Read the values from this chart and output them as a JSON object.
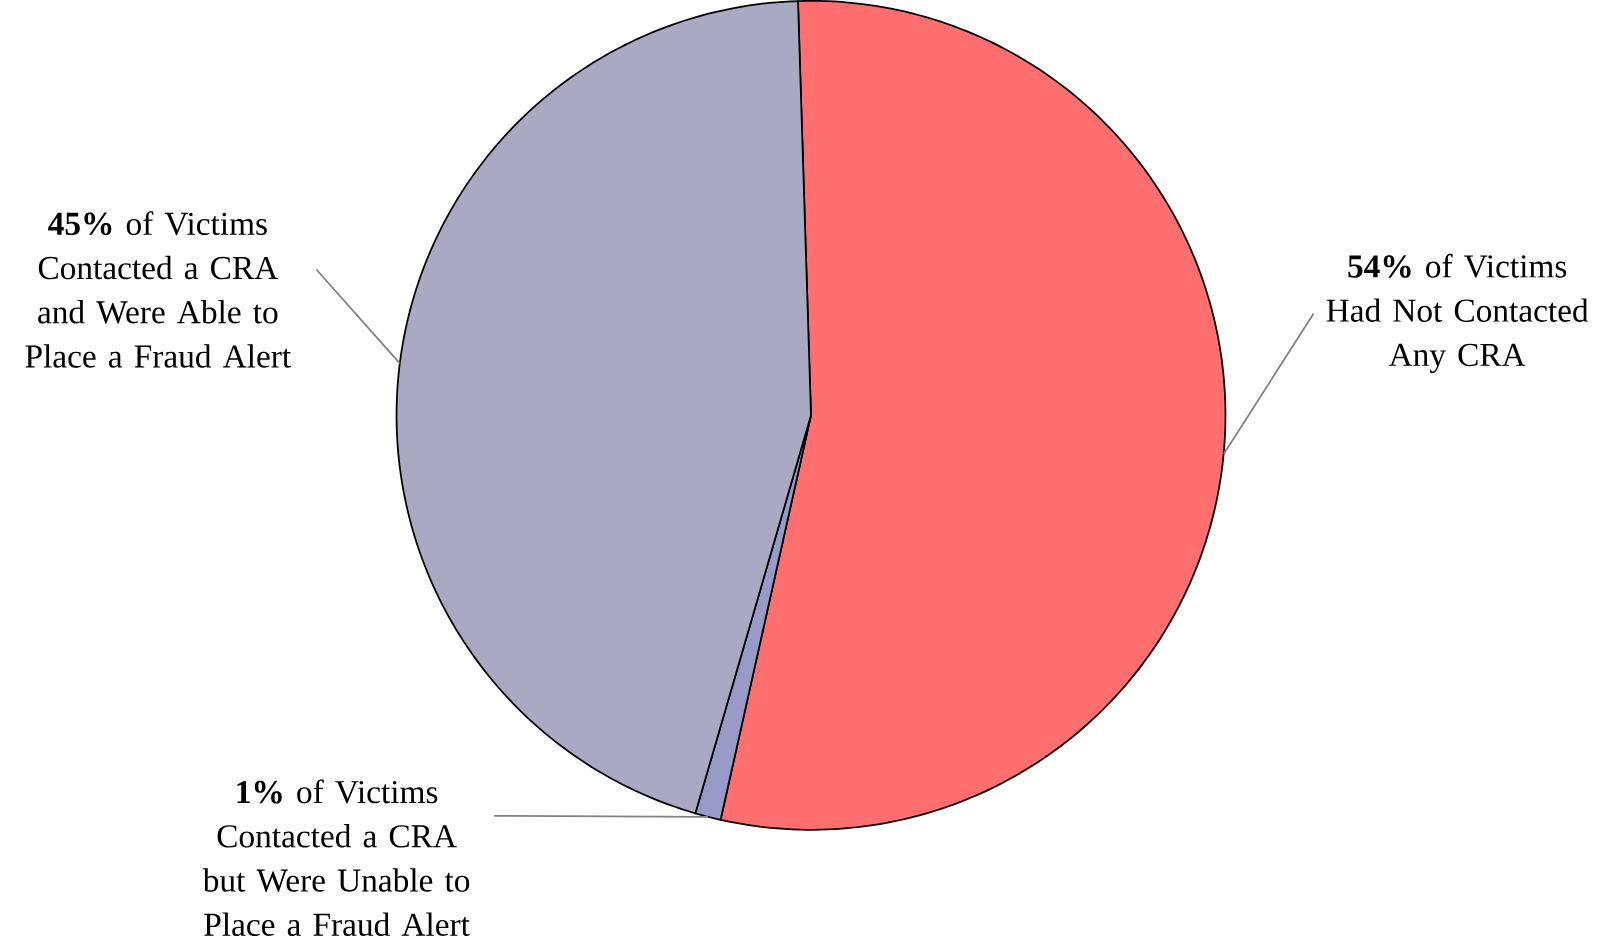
{
  "chart_data": {
    "type": "pie",
    "categories": [
      "**54%** of Victims Had Not Contacted Any CRA",
      "**1%** of Victims Contacted a CRA but Were Unable to Place a Fraud Alert",
      "**45%** of Victims Contacted a CRA and Were Able to Place a Fraud Alert"
    ],
    "values": [
      54,
      1,
      45
    ],
    "colors": [
      "#ff6f6f",
      "#9a9ac8",
      "#a9a9c4"
    ]
  }
}
